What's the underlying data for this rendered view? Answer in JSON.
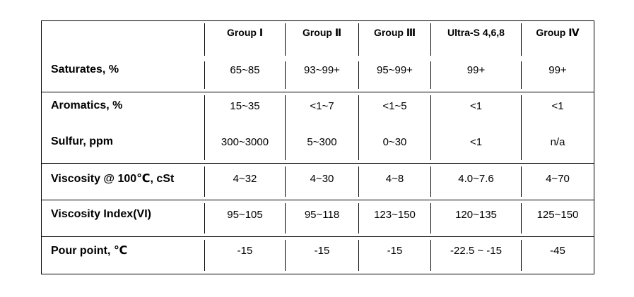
{
  "table": {
    "columns": [
      "Group Ⅰ",
      "Group Ⅱ",
      "Group Ⅲ",
      "Ultra-S 4,6,8",
      "Group Ⅳ"
    ],
    "rows": [
      {
        "label": "Saturates, %",
        "values": [
          "65~85",
          "93~99+",
          "95~99+",
          "99+",
          "99+"
        ]
      },
      {
        "label": "Aromatics, %",
        "values": [
          "15~35",
          "<1~7",
          "<1~5",
          "<1",
          "<1"
        ]
      },
      {
        "label": "Sulfur, ppm",
        "values": [
          "300~3000",
          "5~300",
          "0~30",
          "<1",
          "n/a"
        ]
      },
      {
        "label": "Viscosity @ 100℃, cSt",
        "values": [
          "4~32",
          "4~30",
          "4~8",
          "4.0~7.6",
          "4~70"
        ]
      },
      {
        "label": "Viscosity Index(VI)",
        "values": [
          "95~105",
          "95~118",
          "123~150",
          "120~135",
          "125~150"
        ]
      },
      {
        "label": "Pour point, ℃",
        "values": [
          "-15",
          "-15",
          "-15",
          "-22.5 ~ -15",
          "-45"
        ]
      }
    ]
  }
}
